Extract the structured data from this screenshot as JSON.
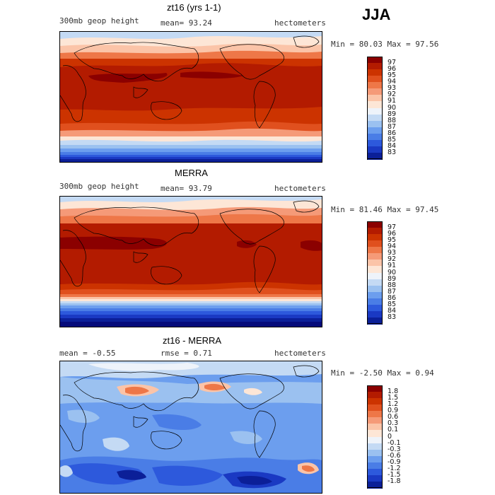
{
  "season": "JJA",
  "panels": [
    {
      "title": "zt16 (yrs 1-1)",
      "left_label": "300mb geop height",
      "mean_label": "mean=  93.24",
      "units": "hectometers",
      "minmax": "Min =  80.03 Max =  97.56",
      "colorbar": [
        "97",
        "96",
        "95",
        "94",
        "93",
        "92",
        "91",
        "90",
        "89",
        "88",
        "87",
        "86",
        "85",
        "84",
        "83"
      ]
    },
    {
      "title": "MERRA",
      "left_label": "300mb geop height",
      "mean_label": "mean=  93.79",
      "units": "hectometers",
      "minmax": "Min =  81.46 Max =  97.45",
      "colorbar": [
        "97",
        "96",
        "95",
        "94",
        "93",
        "92",
        "91",
        "90",
        "89",
        "88",
        "87",
        "86",
        "85",
        "84",
        "83"
      ]
    },
    {
      "title": "zt16 - MERRA",
      "left_label": "mean =  -0.55",
      "mean_label": "rmse =   0.71",
      "units": "hectometers",
      "minmax": "Min = -2.50 Max =   0.94",
      "colorbar": [
        "1.8",
        "1.5",
        "1.2",
        "0.9",
        "0.6",
        "0.3",
        "0.1",
        "0",
        "-0.1",
        "-0.3",
        "-0.6",
        "-0.9",
        "-1.2",
        "-1.5",
        "-1.8"
      ]
    }
  ],
  "colors": {
    "c16": "#8b0000",
    "c15": "#b31b00",
    "c14": "#cc3300",
    "c13": "#e0501e",
    "c12": "#ee7748",
    "c11": "#f59a78",
    "c10": "#fbc4a8",
    "c9": "#fde6d6",
    "c8": "#eef3fa",
    "c7": "#c4daf4",
    "c6": "#9bc1f0",
    "c5": "#6c9eee",
    "c4": "#4a7de6",
    "c3": "#2d59dc",
    "c2": "#1a39c3",
    "c1": "#0b1f98",
    "c0": "#050b7a"
  }
}
